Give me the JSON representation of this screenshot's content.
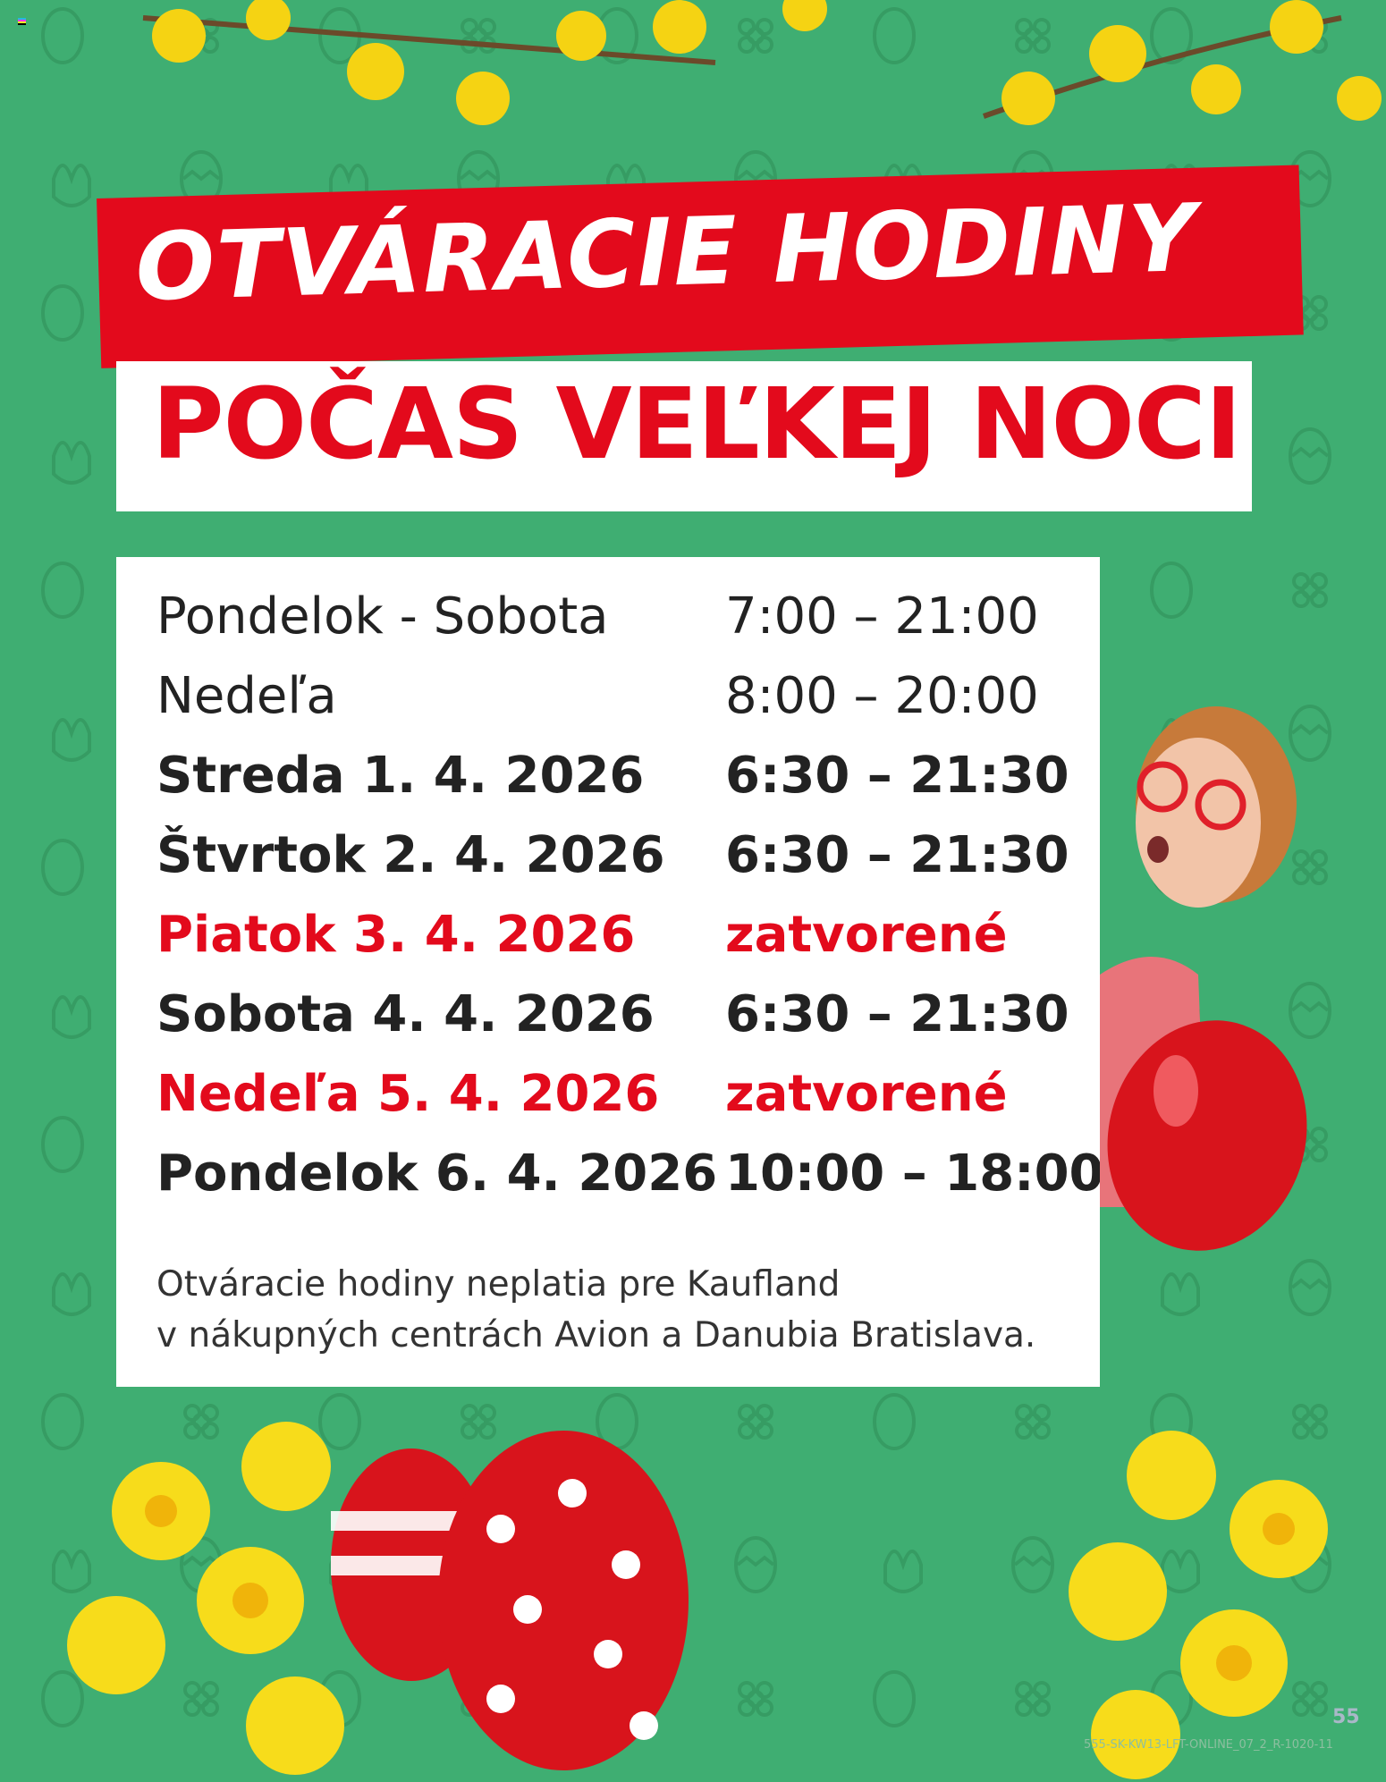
{
  "header": {
    "title_line1": "OTVÁRACIE HODINY",
    "title_line2": "POČAS VEĽKEJ NOCI"
  },
  "hours": [
    {
      "day": "Pondelok - Sobota",
      "time": "7:00 – 21:00",
      "style": "regular"
    },
    {
      "day": "Nedeľa",
      "time": "8:00 – 20:00",
      "style": "regular"
    },
    {
      "day": "Streda 1. 4. 2026",
      "time": "6:30 – 21:30",
      "style": "bold"
    },
    {
      "day": "Štvrtok 2. 4. 2026",
      "time": "6:30 – 21:30",
      "style": "bold"
    },
    {
      "day": "Piatok 3. 4. 2026",
      "time": "zatvorené",
      "style": "closed"
    },
    {
      "day": "Sobota 4. 4. 2026",
      "time": "6:30 – 21:30",
      "style": "bold"
    },
    {
      "day": "Nedeľa 5. 4. 2026",
      "time": "zatvorené",
      "style": "closed"
    },
    {
      "day": "Pondelok 6. 4. 2026",
      "time": "10:00 – 18:00",
      "style": "bold"
    }
  ],
  "note": {
    "line1": "Otváracie hodiny neplatia pre Kaufland",
    "line2": "v nákupných centrách Avion a Danubia Bratislava."
  },
  "footer": {
    "page_number": "55",
    "code": "555-SK-KW13-LFT-ONLINE_07_2_R-1020-11"
  },
  "colors": {
    "background": "#3fae72",
    "accent_red": "#e30a1c",
    "text": "#222222"
  }
}
